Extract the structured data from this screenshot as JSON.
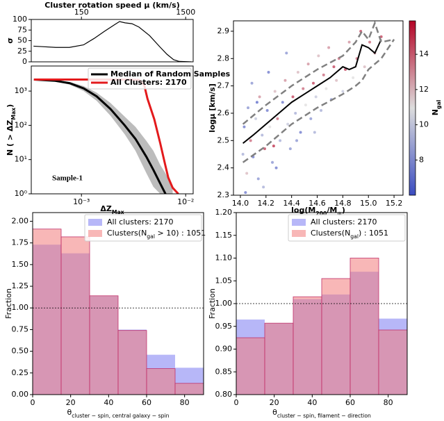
{
  "chart_data": [
    {
      "type": "line",
      "xlabel": "Cluster rotation speed μ (km/s)",
      "ylabel": "σ",
      "xscale": "log",
      "xaxis_position": "top",
      "xlim": [
        49.5,
        1770
      ],
      "xticks": [
        150,
        1500
      ],
      "ylim": [
        0,
        100
      ],
      "yticks": [
        0,
        25,
        50,
        75,
        100
      ],
      "series": [
        {
          "color": "#000000",
          "x": [
            52,
            62,
            85,
            115,
            157,
            198,
            249,
            313,
            348,
            393,
            458,
            535,
            675,
            850,
            990,
            1150,
            1300,
            1700
          ],
          "values": [
            37,
            36,
            34,
            34,
            40,
            55,
            72,
            88,
            95,
            92,
            90,
            82,
            62,
            35,
            18,
            5,
            1,
            0
          ]
        }
      ]
    },
    {
      "type": "line",
      "xlabel": [
        "ΔZ",
        "Max"
      ],
      "ylabel": [
        "N ( > ΔZ",
        "Max",
        ")"
      ],
      "xscale": "log",
      "yscale": "log",
      "annotation": "Sample-1",
      "legend": "upper right",
      "xlim": [
        0.00033,
        0.0118
      ],
      "xticks": [
        {
          "value": 0.001,
          "label": "10⁻³"
        },
        {
          "value": 0.01,
          "label": "10⁻²"
        }
      ],
      "ylim": [
        1,
        5400
      ],
      "yticks": [
        {
          "value": 1,
          "label": "10⁰"
        },
        {
          "value": 10,
          "label": "10¹"
        },
        {
          "value": 100,
          "label": "10²"
        },
        {
          "value": 1000,
          "label": "10³"
        }
      ],
      "band": {
        "color": "#a0a0a0",
        "x": [
          0.00035,
          0.00056,
          0.00077,
          0.00105,
          0.0014,
          0.0019,
          0.0026,
          0.0033,
          0.0042,
          0.0049,
          0.0057,
          0.0064,
          0.0075
        ],
        "lower": [
          2100,
          1900,
          1550,
          1000,
          520,
          190,
          55,
          18,
          4,
          1.6,
          1,
          1,
          1
        ],
        "upper": [
          2250,
          2100,
          1850,
          1400,
          900,
          450,
          180,
          90,
          35,
          18,
          7,
          4,
          1.5
        ]
      },
      "series": [
        {
          "name": "Median of Random Samples",
          "color": "#000000",
          "x": [
            0.00035,
            0.00056,
            0.00077,
            0.00105,
            0.0014,
            0.0019,
            0.0026,
            0.0033,
            0.0042,
            0.0049,
            0.0057,
            0.0064
          ],
          "values": [
            2170,
            2000,
            1700,
            1200,
            700,
            300,
            100,
            40,
            12,
            5,
            2,
            1
          ]
        },
        {
          "name": "All Clusters: 2170",
          "color": "#e31a1c",
          "x": [
            0.00035,
            0.003,
            0.0036,
            0.004,
            0.0043,
            0.005,
            0.0057,
            0.0063,
            0.0068,
            0.0075,
            0.0085
          ],
          "values": [
            2170,
            2170,
            2100,
            1500,
            600,
            150,
            30,
            8,
            3,
            1.5,
            1
          ]
        }
      ]
    },
    {
      "type": "scatter",
      "xlabel": [
        "log(M",
        "200",
        "/M",
        "⊙",
        ")"
      ],
      "ylabel": "logμ [km/s]",
      "xlim": [
        13.946,
        15.27
      ],
      "xticks": [
        {
          "value": 14,
          "label": "14.0"
        },
        14.2,
        14.4,
        14.6,
        14.8,
        {
          "value": 15,
          "label": "15.0"
        },
        15.2
      ],
      "ylim": [
        2.3,
        2.938
      ],
      "yticks": [
        2.3,
        2.4,
        2.5,
        2.6,
        2.7,
        2.8,
        2.9
      ],
      "cmap": "coolwarm",
      "clim": [
        6,
        15.9
      ],
      "cticks": [
        8,
        10,
        12,
        14
      ],
      "clabel": [
        "N",
        "gal"
      ],
      "points": {
        "x": [
          14.02,
          14.03,
          14.05,
          14.06,
          14.08,
          14.1,
          14.12,
          14.14,
          14.15,
          14.17,
          14.19,
          14.21,
          14.23,
          14.25,
          14.27,
          14.29,
          14.31,
          14.33,
          14.35,
          14.37,
          14.39,
          14.41,
          14.43,
          14.45,
          14.47,
          14.49,
          14.51,
          14.53,
          14.55,
          14.57,
          14.59,
          14.61,
          14.63,
          14.65,
          14.67,
          14.69,
          14.71,
          14.73,
          14.75,
          14.77,
          14.8,
          14.82,
          14.85,
          14.88,
          14.91,
          14.94,
          14.97,
          15.01,
          15.05,
          15.1,
          14.04,
          14.09,
          14.18,
          14.28,
          14.44,
          14.58,
          14.22,
          14.36,
          14.13,
          14.26
        ],
        "y": [
          2.45,
          2.55,
          2.38,
          2.62,
          2.5,
          2.44,
          2.58,
          2.36,
          2.66,
          2.52,
          2.47,
          2.61,
          2.55,
          2.42,
          2.68,
          2.58,
          2.5,
          2.64,
          2.72,
          2.56,
          2.47,
          2.66,
          2.6,
          2.75,
          2.53,
          2.69,
          2.63,
          2.78,
          2.58,
          2.71,
          2.66,
          2.81,
          2.61,
          2.74,
          2.69,
          2.84,
          2.65,
          2.77,
          2.72,
          2.8,
          2.68,
          2.76,
          2.86,
          2.73,
          2.8,
          2.9,
          2.77,
          2.86,
          2.82,
          2.88,
          2.31,
          2.71,
          2.33,
          2.4,
          2.5,
          2.53,
          2.75,
          2.82,
          2.64,
          2.48
        ],
        "ngal": [
          9,
          7,
          12,
          8,
          14,
          7,
          10,
          8,
          13,
          9,
          15,
          7,
          11,
          8,
          12,
          14,
          9,
          7,
          13,
          10,
          8,
          15,
          9,
          12,
          7,
          14,
          11,
          13,
          8,
          15,
          10,
          12,
          9,
          14,
          11,
          13,
          8,
          15,
          12,
          14,
          10,
          15,
          13,
          11,
          14,
          15,
          12,
          14,
          13,
          15,
          7,
          8,
          9,
          7,
          8,
          9,
          7,
          8,
          6.5,
          15.5
        ]
      },
      "series": [
        {
          "color": "#000000",
          "style": "solid",
          "x": [
            14.02,
            14.1,
            14.2,
            14.3,
            14.4,
            14.5,
            14.6,
            14.7,
            14.8,
            14.85,
            14.9,
            14.95,
            15.0,
            15.05,
            15.1
          ],
          "values": [
            2.49,
            2.52,
            2.56,
            2.6,
            2.64,
            2.67,
            2.7,
            2.73,
            2.77,
            2.76,
            2.77,
            2.85,
            2.84,
            2.82,
            2.87
          ]
        },
        {
          "color": "#808080",
          "style": "dashed",
          "x": [
            14.02,
            14.2,
            14.4,
            14.6,
            14.8,
            14.9,
            14.95,
            15.0,
            15.05,
            15.1,
            15.2
          ],
          "values": [
            2.56,
            2.63,
            2.7,
            2.76,
            2.81,
            2.86,
            2.9,
            2.87,
            2.93,
            2.86,
            2.87
          ]
        },
        {
          "color": "#808080",
          "style": "dashed",
          "x": [
            14.02,
            14.2,
            14.4,
            14.6,
            14.8,
            14.9,
            14.95,
            15.0,
            15.1,
            15.2
          ],
          "values": [
            2.42,
            2.48,
            2.56,
            2.62,
            2.67,
            2.7,
            2.72,
            2.76,
            2.8,
            2.87
          ]
        }
      ]
    },
    {
      "type": "histogram",
      "xlabel": [
        "θ",
        "cluster − spin, central galaxy − spin"
      ],
      "ylabel": "Fraction",
      "legend": "upper right",
      "bins": [
        0,
        15,
        30,
        45,
        60,
        75,
        90
      ],
      "xlim": [
        0,
        90
      ],
      "xticks": [
        0,
        20,
        40,
        60,
        80
      ],
      "ylim": [
        0,
        2.1
      ],
      "yticks": [
        {
          "value": 0,
          "label": "0.00"
        },
        {
          "value": 0.25,
          "label": "0.25"
        },
        {
          "value": 0.5,
          "label": "0.50"
        },
        {
          "value": 0.75,
          "label": "0.75"
        },
        {
          "value": 1,
          "label": "1.00"
        },
        {
          "value": 1.25,
          "label": "1.25"
        },
        {
          "value": 1.5,
          "label": "1.50"
        },
        {
          "value": 1.75,
          "label": "1.75"
        },
        {
          "value": 2,
          "label": "2.00"
        }
      ],
      "hline": 1,
      "series": [
        {
          "name": [
            "All clusters: 2170"
          ],
          "color": "#7b7bf2",
          "values": [
            1.73,
            1.63,
            1.14,
            0.75,
            0.46,
            0.31
          ]
        },
        {
          "name": [
            "Clusters(N",
            "gal",
            " > 10) : 1051"
          ],
          "color": "#f27b7b",
          "values": [
            1.91,
            1.82,
            1.14,
            0.74,
            0.3,
            0.13
          ]
        }
      ]
    },
    {
      "type": "histogram",
      "xlabel": [
        "θ",
        "cluster − spin, filament − direction"
      ],
      "ylabel": "Fraction",
      "legend": "upper right",
      "bins": [
        0,
        15,
        30,
        45,
        60,
        75,
        90
      ],
      "xlim": [
        0,
        90
      ],
      "xticks": [
        0,
        20,
        40,
        60,
        80
      ],
      "ylim": [
        0.8,
        1.2
      ],
      "yticks": [
        {
          "value": 0.8,
          "label": "0.80"
        },
        {
          "value": 0.85,
          "label": "0.85"
        },
        {
          "value": 0.9,
          "label": "0.90"
        },
        {
          "value": 0.95,
          "label": "0.95"
        },
        {
          "value": 1,
          "label": "1.00"
        },
        {
          "value": 1.05,
          "label": "1.05"
        },
        {
          "value": 1.1,
          "label": "1.10"
        },
        {
          "value": 1.15,
          "label": "1.15"
        },
        {
          "value": 1.2,
          "label": "1.20"
        }
      ],
      "hline": 1,
      "series": [
        {
          "name": [
            "All clusters: 2170"
          ],
          "color": "#7b7bf2",
          "values": [
            0.965,
            0.957,
            1.01,
            1.02,
            1.07,
            0.967
          ]
        },
        {
          "name": [
            "Clusters(N",
            "gal",
            ") : 1051"
          ],
          "color": "#f27b7b",
          "values": [
            0.925,
            0.957,
            1.015,
            1.055,
            1.1,
            0.942
          ]
        }
      ]
    }
  ]
}
